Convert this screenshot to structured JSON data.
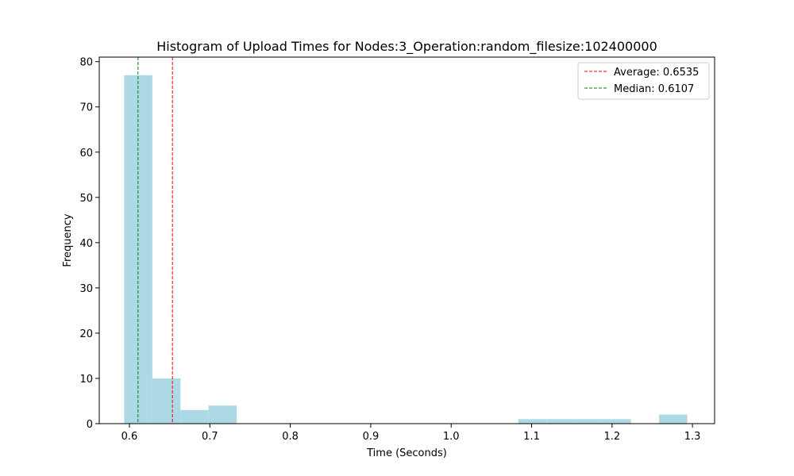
{
  "chart_data": {
    "type": "bar",
    "title": "Histogram of Upload Times for Nodes:3_Operation:random_filesize:102400000",
    "xlabel": "Time (Seconds)",
    "ylabel": "Frequency",
    "xlim": [
      0.5625,
      1.3275
    ],
    "ylim": [
      0,
      81
    ],
    "xticks": [
      "0.6",
      "0.7",
      "0.8",
      "0.9",
      "1.0",
      "1.1",
      "1.2",
      "1.3"
    ],
    "yticks": [
      "0",
      "10",
      "20",
      "30",
      "40",
      "50",
      "60",
      "70",
      "80"
    ],
    "bar_color": "#add8e6",
    "bins": [
      {
        "start": 0.5935,
        "end": 0.6285,
        "count": 77
      },
      {
        "start": 0.6285,
        "end": 0.6635,
        "count": 10
      },
      {
        "start": 0.6635,
        "end": 0.6985,
        "count": 3
      },
      {
        "start": 0.6985,
        "end": 0.7335,
        "count": 4
      },
      {
        "start": 1.0835,
        "end": 1.1185,
        "count": 1
      },
      {
        "start": 1.1185,
        "end": 1.1535,
        "count": 1
      },
      {
        "start": 1.1535,
        "end": 1.1885,
        "count": 1
      },
      {
        "start": 1.1885,
        "end": 1.2235,
        "count": 1
      },
      {
        "start": 1.2585,
        "end": 1.2935,
        "count": 2
      }
    ],
    "lines": [
      {
        "label": "Average: 0.6535",
        "x": 0.6535,
        "color": "#ff0000",
        "style": "dashed"
      },
      {
        "label": "Median: 0.6107",
        "x": 0.6107,
        "color": "#008000",
        "style": "dashed"
      }
    ],
    "legend_position": "top-right",
    "grid": false
  }
}
